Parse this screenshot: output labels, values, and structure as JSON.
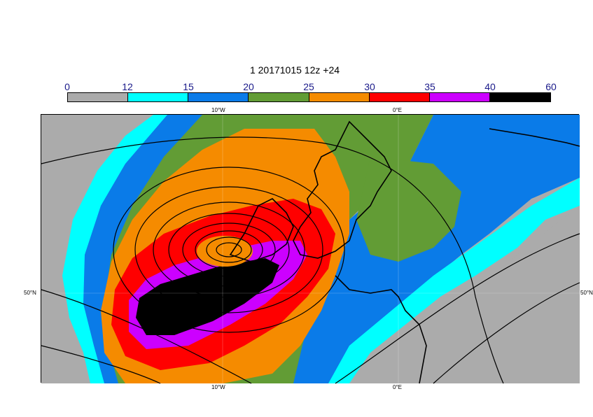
{
  "title": "1 20171015 12z +24",
  "colorbar": {
    "ticks": [
      "0",
      "12",
      "15",
      "20",
      "25",
      "30",
      "35",
      "40",
      "60"
    ],
    "colors": [
      "#ababab",
      "#00ffff",
      "#0a7be8",
      "#629c35",
      "#f58b00",
      "#ff0000",
      "#cc00ff",
      "#000000"
    ]
  },
  "axes": {
    "top_lon": [
      "10°W",
      "0°E"
    ],
    "bottom_lon": [
      "10°W",
      "0°E"
    ],
    "left_lat": "50°N",
    "right_lat": "50°N"
  }
}
